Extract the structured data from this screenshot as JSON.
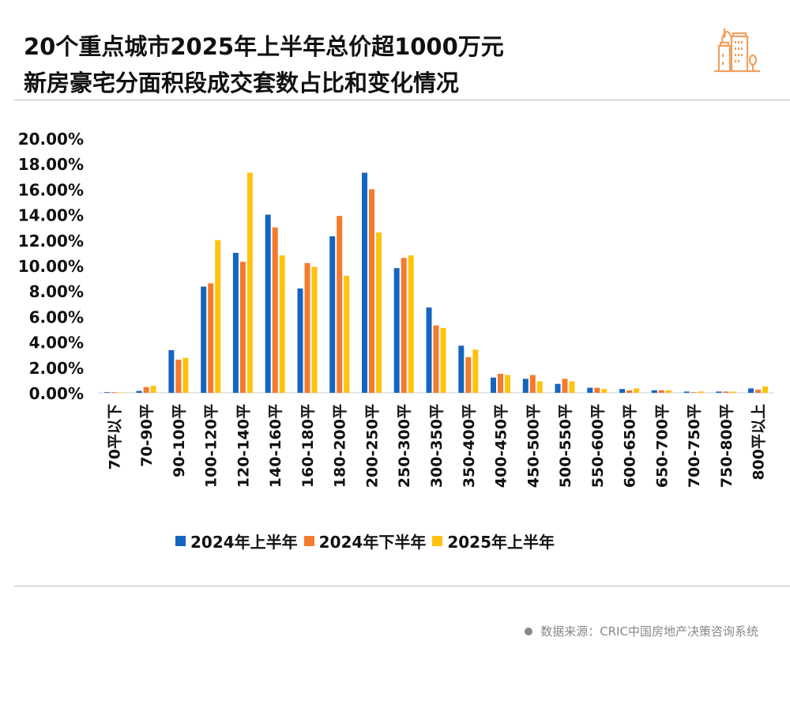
{
  "title_line1": "20个重点城市2025年上半年总价超1000万元",
  "title_line2": "新房豪宅分面积段成交套数占比和变化情况",
  "logo_icon": "city-buildings-icon",
  "source": "数据来源：CRIC中国房地产决策咨询系统",
  "colors": {
    "series1": "#1565C0",
    "series2": "#F47A2E",
    "series3": "#FFC20E",
    "axis": "#cccccc",
    "logo": "#F0A060"
  },
  "chart_data": {
    "type": "bar",
    "title": "20个重点城市2025年上半年总价超1000万元新房豪宅分面积段成交套数占比和变化情况",
    "xlabel": "",
    "ylabel": "",
    "ylim": [
      0,
      20
    ],
    "yticks": [
      "0.00%",
      "2.00%",
      "4.00%",
      "6.00%",
      "8.00%",
      "10.00%",
      "12.00%",
      "14.00%",
      "16.00%",
      "18.00%",
      "20.00%"
    ],
    "grid": false,
    "legend_position": "bottom",
    "categories": [
      "70平以下",
      "70-90平",
      "90-100平",
      "100-120平",
      "120-140平",
      "140-160平",
      "160-180平",
      "180-200平",
      "200-250平",
      "250-300平",
      "300-350平",
      "350-400平",
      "400-450平",
      "450-500平",
      "500-550平",
      "550-600平",
      "600-650平",
      "650-700平",
      "700-750平",
      "750-800平",
      "800平以上"
    ],
    "series": [
      {
        "name": "2024年上半年",
        "values": [
          0.05,
          0.15,
          3.35,
          8.35,
          11.0,
          14.0,
          8.2,
          12.3,
          17.3,
          9.8,
          6.7,
          3.7,
          1.2,
          1.1,
          0.7,
          0.4,
          0.3,
          0.2,
          0.1,
          0.1,
          0.35
        ]
      },
      {
        "name": "2024年下半年",
        "values": [
          0.05,
          0.45,
          2.6,
          8.6,
          10.3,
          13.0,
          10.2,
          13.9,
          16.0,
          10.6,
          5.3,
          2.8,
          1.5,
          1.4,
          1.1,
          0.4,
          0.2,
          0.2,
          0.05,
          0.1,
          0.25
        ]
      },
      {
        "name": "2025年上半年",
        "values": [
          0.02,
          0.55,
          2.75,
          12.0,
          17.3,
          10.8,
          9.9,
          9.2,
          12.6,
          10.8,
          5.1,
          3.4,
          1.4,
          0.9,
          0.9,
          0.3,
          0.35,
          0.2,
          0.1,
          0.1,
          0.5
        ]
      }
    ]
  }
}
